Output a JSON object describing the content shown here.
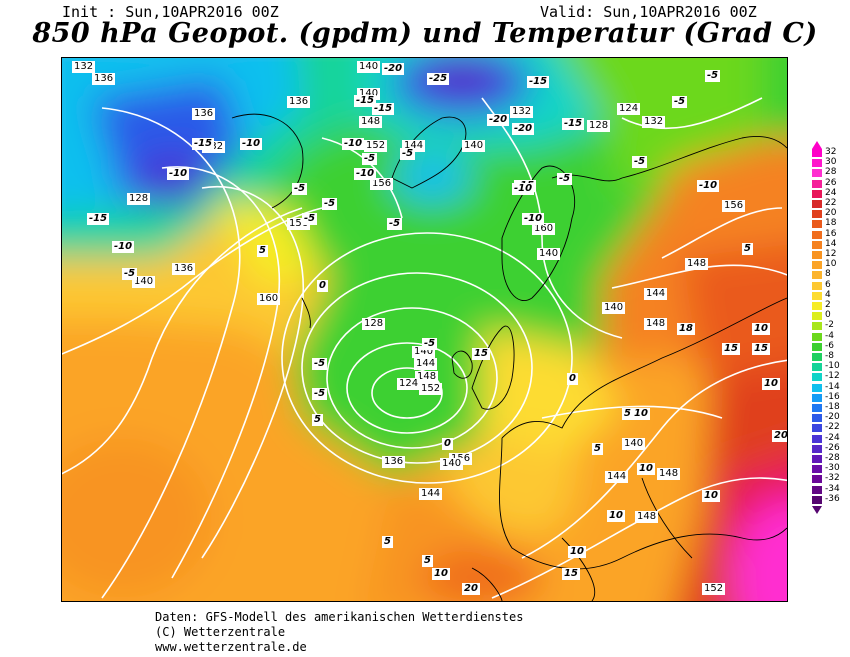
{
  "header": {
    "init": "Init : Sun,10APR2016 00Z",
    "valid": "Valid: Sun,10APR2016 00Z",
    "title": "850 hPa Geopot. (gpdm) und Temperatur (Grad C)"
  },
  "map": {
    "geopotential_labels": [
      "132",
      "136",
      "140",
      "140",
      "136",
      "148",
      "152",
      "156",
      "156",
      "144",
      "140",
      "132",
      "124",
      "128",
      "132",
      "128",
      "136",
      "140",
      "144",
      "148",
      "152",
      "156",
      "160",
      "160",
      "140",
      "136",
      "132",
      "128",
      "124",
      "136",
      "140",
      "144",
      "148",
      "140",
      "144",
      "148",
      "140",
      "156",
      "140",
      "148",
      "144",
      "148",
      "152"
    ],
    "temperature_labels": [
      "-20",
      "-25",
      "-15",
      "-5",
      "-5",
      "-15",
      "-10",
      "-15",
      "-20",
      "-15",
      "-20",
      "-15",
      "-15",
      "-10",
      "-10",
      "-5",
      "-10",
      "-5",
      "-5",
      "-10",
      "-15",
      "-10",
      "-5",
      "-5",
      "-10",
      "-5",
      "-5",
      "-10",
      "-5",
      "-5",
      "0",
      "5",
      "5",
      "-5",
      "-5",
      "-5",
      "0",
      "0",
      "5",
      "10",
      "10",
      "15",
      "10",
      "10",
      "10",
      "5",
      "5",
      "5",
      "5",
      "10",
      "10",
      "15",
      "20",
      "20",
      "10",
      "18",
      "15",
      "15"
    ],
    "colors": {
      "land_border": "#000000",
      "contour": "#ffffff"
    }
  },
  "scale": {
    "levels": [
      {
        "label": "32",
        "color": "#ff00c8"
      },
      {
        "label": "30",
        "color": "#ff16cc"
      },
      {
        "label": "28",
        "color": "#ff2fd0"
      },
      {
        "label": "26",
        "color": "#f5209a"
      },
      {
        "label": "24",
        "color": "#e8175a"
      },
      {
        "label": "22",
        "color": "#d72a2a"
      },
      {
        "label": "20",
        "color": "#e0401e"
      },
      {
        "label": "18",
        "color": "#ea5a1c"
      },
      {
        "label": "16",
        "color": "#f06e1e"
      },
      {
        "label": "14",
        "color": "#f58220"
      },
      {
        "label": "12",
        "color": "#f89422"
      },
      {
        "label": "10",
        "color": "#fba428"
      },
      {
        "label": "8",
        "color": "#fcb42e"
      },
      {
        "label": "6",
        "color": "#fdc832"
      },
      {
        "label": "4",
        "color": "#fddc30"
      },
      {
        "label": "2",
        "color": "#f6ec28"
      },
      {
        "label": "0",
        "color": "#dcee1e"
      },
      {
        "label": "-2",
        "color": "#a8e61c"
      },
      {
        "label": "-4",
        "color": "#6cd81c"
      },
      {
        "label": "-6",
        "color": "#3cd030"
      },
      {
        "label": "-8",
        "color": "#1ed060"
      },
      {
        "label": "-10",
        "color": "#14d498"
      },
      {
        "label": "-12",
        "color": "#10d4c8"
      },
      {
        "label": "-14",
        "color": "#10c0ee"
      },
      {
        "label": "-16",
        "color": "#149cf6"
      },
      {
        "label": "-18",
        "color": "#1e78f2"
      },
      {
        "label": "-20",
        "color": "#2c5ae8"
      },
      {
        "label": "-22",
        "color": "#3a46e0"
      },
      {
        "label": "-24",
        "color": "#4a34d6"
      },
      {
        "label": "-26",
        "color": "#5628c8"
      },
      {
        "label": "-28",
        "color": "#6018b8"
      },
      {
        "label": "-30",
        "color": "#680ea8"
      },
      {
        "label": "-32",
        "color": "#6a0898"
      },
      {
        "label": "-34",
        "color": "#620884"
      },
      {
        "label": "-36",
        "color": "#560670"
      }
    ]
  },
  "footer": {
    "line1": "Daten: GFS-Modell des amerikanischen Wetterdienstes",
    "line2": "(C) Wetterzentrale",
    "line3": "www.wetterzentrale.de"
  }
}
